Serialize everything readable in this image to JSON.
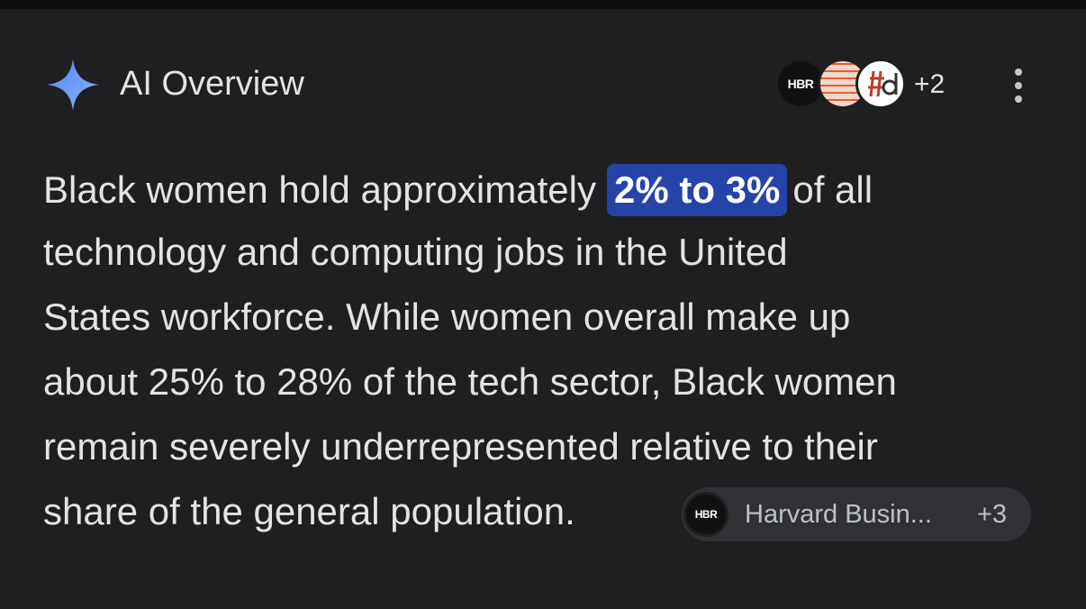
{
  "header": {
    "title": "AI Overview",
    "source_icon_label": "HBR",
    "more_sources": "+2"
  },
  "paragraph": {
    "lead": "Black women hold approximately",
    "highlight": "2% to 3%",
    "lead_end": "of all",
    "lines": [
      "technology and computing jobs in the United",
      "States workforce. While women overall make up",
      "about 25% to 28% of the tech sector, Black women",
      "remain severely underrepresented relative to their",
      "share of the general population."
    ]
  },
  "citation": {
    "icon_label": "HBR",
    "source": "Harvard Busin...",
    "more": "+3"
  }
}
